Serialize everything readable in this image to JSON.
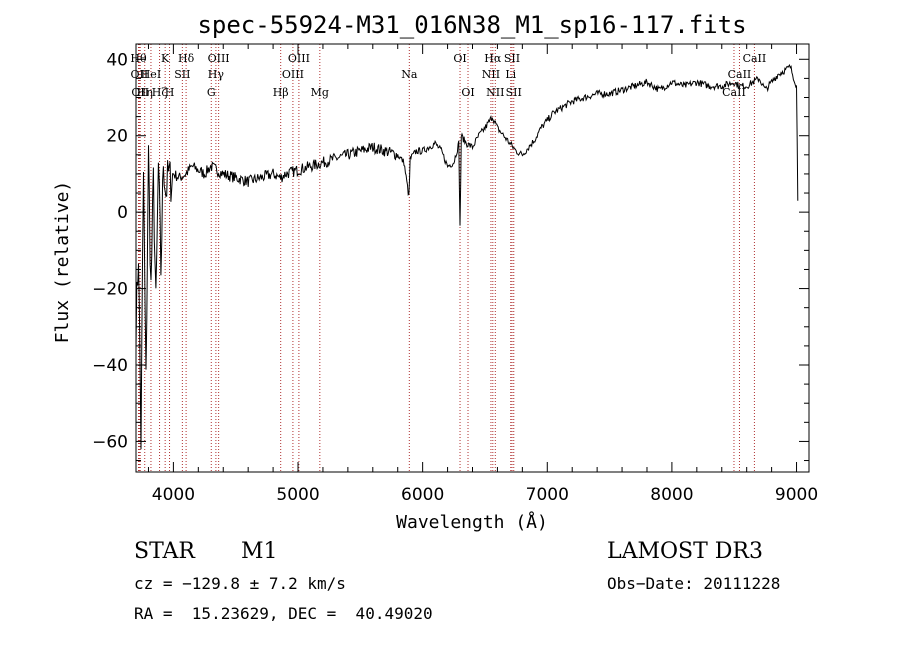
{
  "chart_data": {
    "type": "line",
    "title": "spec-55924-M31_016N38_M1_sp16-117.fits",
    "xlabel": "Wavelength (Å)",
    "ylabel": "Flux (relative)",
    "xlim": [
      3700,
      9100
    ],
    "ylim": [
      -68,
      44
    ],
    "xticks": [
      4000,
      5000,
      6000,
      7000,
      8000,
      9000
    ],
    "yticks": [
      -60,
      -40,
      -20,
      0,
      20,
      40
    ],
    "grid": false,
    "series": [
      {
        "x": [
          3700,
          3720,
          3740,
          3760,
          3780,
          3800,
          3820,
          3840,
          3860,
          3880,
          3900,
          3920,
          3940,
          3960,
          3980,
          4000,
          4050,
          4100,
          4150,
          4200,
          4250,
          4300,
          4350,
          4400,
          4500,
          4600,
          4700,
          4800,
          4860,
          4900,
          5000,
          5100,
          5200,
          5300,
          5400,
          5500,
          5600,
          5700,
          5800,
          5850,
          5890,
          5900,
          5950,
          6000,
          6100,
          6150,
          6200,
          6250,
          6290,
          6300,
          6310,
          6350,
          6400,
          6450,
          6500,
          6560,
          6600,
          6650,
          6700,
          6750,
          6800,
          6850,
          6900,
          6950,
          7000,
          7050,
          7100,
          7200,
          7300,
          7400,
          7500,
          7600,
          7700,
          7800,
          7900,
          8000,
          8100,
          8200,
          8300,
          8400,
          8500,
          8540,
          8600,
          8650,
          8700,
          8750,
          8800,
          8850,
          8900,
          8950,
          9000,
          9010
        ],
        "y": [
          -30,
          -10,
          -60,
          10,
          -45,
          15,
          -20,
          8,
          -25,
          12,
          -15,
          14,
          5,
          10,
          8,
          10,
          9,
          10,
          12,
          11,
          10,
          12,
          11,
          10,
          9,
          8,
          9,
          10,
          9,
          10,
          11,
          12,
          13,
          14,
          15,
          16,
          17,
          16,
          15,
          13,
          4,
          14,
          16,
          16,
          18,
          16,
          12,
          13,
          18,
          -4,
          20,
          18,
          17,
          20,
          22,
          25,
          22,
          20,
          18,
          16,
          15,
          17,
          19,
          22,
          24,
          26,
          27,
          29,
          30,
          31,
          31,
          32,
          33,
          34,
          32,
          34,
          33,
          34,
          33,
          33,
          34,
          33,
          33,
          34,
          35,
          32,
          34,
          36,
          37,
          38,
          33,
          3
        ]
      }
    ],
    "lines": [
      {
        "x": 3720,
        "label": "Hθ",
        "row": 1
      },
      {
        "x": 3727,
        "label": "OII",
        "row": 2
      },
      {
        "x": 3734,
        "label": "OII",
        "row": 3
      },
      {
        "x": 3770,
        "label": "Hη",
        "row": 3
      },
      {
        "x": 3820,
        "label": "HeI",
        "row": 2
      },
      {
        "x": 3889,
        "label": "Hζ",
        "row": 3
      },
      {
        "x": 3934,
        "label": "K",
        "row": 1
      },
      {
        "x": 3969,
        "label": "H",
        "row": 3
      },
      {
        "x": 4072,
        "label": "SII",
        "row": 2
      },
      {
        "x": 4102,
        "label": "Hδ",
        "row": 1
      },
      {
        "x": 4304,
        "label": "G",
        "row": 3
      },
      {
        "x": 4341,
        "label": "Hγ",
        "row": 2
      },
      {
        "x": 4363,
        "label": "OIII",
        "row": 1
      },
      {
        "x": 4861,
        "label": "Hβ",
        "row": 3
      },
      {
        "x": 4959,
        "label": "OIII",
        "row": 2
      },
      {
        "x": 5007,
        "label": "OIII",
        "row": 1
      },
      {
        "x": 5175,
        "label": "Mg",
        "row": 3
      },
      {
        "x": 5893,
        "label": "Na",
        "row": 2
      },
      {
        "x": 6300,
        "label": "OI",
        "row": 1
      },
      {
        "x": 6364,
        "label": "OI",
        "row": 3
      },
      {
        "x": 6548,
        "label": "NII",
        "row": 2
      },
      {
        "x": 6563,
        "label": "Hα",
        "row": 1
      },
      {
        "x": 6583,
        "label": "NII",
        "row": 3
      },
      {
        "x": 6707,
        "label": "Li",
        "row": 2
      },
      {
        "x": 6717,
        "label": "SII",
        "row": 1
      },
      {
        "x": 6731,
        "label": "SII",
        "row": 3
      },
      {
        "x": 8498,
        "label": "CaII",
        "row": 3
      },
      {
        "x": 8542,
        "label": "CaII",
        "row": 2
      },
      {
        "x": 8662,
        "label": "CaII",
        "row": 1
      }
    ]
  },
  "info": {
    "object_class": "STAR",
    "subclass": "M1",
    "survey": "LAMOST DR3",
    "cz": "cz = −129.8 ± 7.2 km/s",
    "obs_date": "Obs−Date: 20111228",
    "coords": "RA =  15.23629, DEC =  40.49020"
  },
  "colors": {
    "spectrum": "#000000",
    "line_marker": "#b03030",
    "background": "#ffffff"
  }
}
